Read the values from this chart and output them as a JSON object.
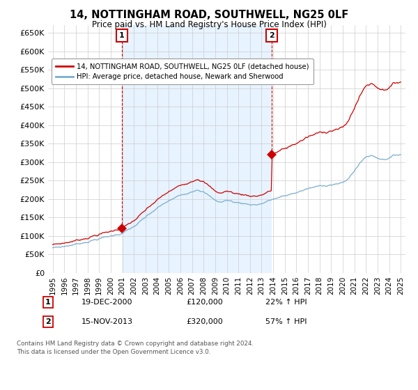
{
  "title": "14, NOTTINGHAM ROAD, SOUTHWELL, NG25 0LF",
  "subtitle": "Price paid vs. HM Land Registry's House Price Index (HPI)",
  "legend_line1": "14, NOTTINGHAM ROAD, SOUTHWELL, NG25 0LF (detached house)",
  "legend_line2": "HPI: Average price, detached house, Newark and Sherwood",
  "annotation1_label": "1",
  "annotation1_date": "19-DEC-2000",
  "annotation1_price": "£120,000",
  "annotation1_hpi": "22% ↑ HPI",
  "annotation2_label": "2",
  "annotation2_date": "15-NOV-2013",
  "annotation2_price": "£320,000",
  "annotation2_hpi": "57% ↑ HPI",
  "footnote1": "Contains HM Land Registry data © Crown copyright and database right 2024.",
  "footnote2": "This data is licensed under the Open Government Licence v3.0.",
  "red_color": "#cc0000",
  "blue_color": "#7aadcc",
  "shade_color": "#ddeeff",
  "annotation_box_color": "#cc0000",
  "background_color": "#ffffff",
  "grid_color": "#cccccc",
  "ylim_min": 0,
  "ylim_max": 670000,
  "sale1_year": 2000.96,
  "sale1_price": 120000,
  "sale2_year": 2013.87,
  "sale2_price": 320000
}
